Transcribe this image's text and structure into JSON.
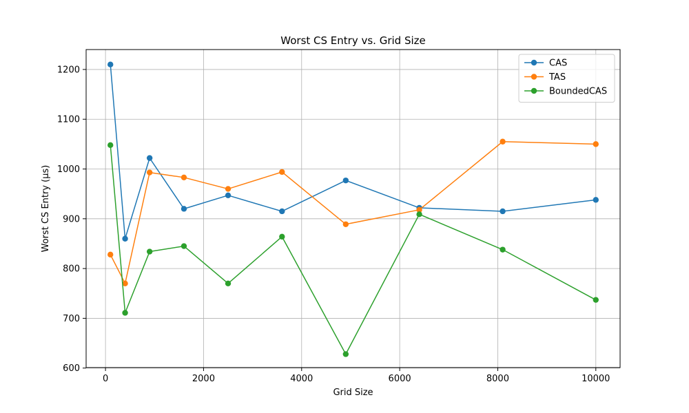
{
  "chart_data": {
    "type": "line",
    "title": "Worst CS Entry vs. Grid Size",
    "xlabel": "Grid Size",
    "ylabel": "Worst CS Entry (µs)",
    "x": [
      100,
      400,
      900,
      1600,
      2500,
      3600,
      4900,
      6400,
      8100,
      10000
    ],
    "series": [
      {
        "name": "CAS",
        "color": "#1f77b4",
        "marker": "circle",
        "values": [
          1210,
          860,
          1022,
          920,
          947,
          915,
          977,
          922,
          915,
          938
        ]
      },
      {
        "name": "TAS",
        "color": "#ff7f0e",
        "marker": "circle",
        "values": [
          828,
          770,
          993,
          983,
          960,
          994,
          889,
          918,
          1055,
          1050
        ]
      },
      {
        "name": "BoundedCAS",
        "color": "#2ca02c",
        "marker": "circle",
        "values": [
          1048,
          711,
          834,
          845,
          770,
          864,
          628,
          909,
          838,
          737
        ]
      }
    ],
    "xlim": [
      -395,
      10495
    ],
    "ylim": [
      601,
      1240
    ],
    "xticks": [
      0,
      2000,
      4000,
      6000,
      8000,
      10000
    ],
    "xtick_labels": [
      "0",
      "2000",
      "4000",
      "6000",
      "8000",
      "10000"
    ],
    "yticks": [
      600,
      700,
      800,
      900,
      1000,
      1100,
      1200
    ],
    "ytick_labels": [
      "600",
      "700",
      "800",
      "900",
      "1000",
      "1100",
      "1200"
    ],
    "grid": true,
    "legend_position": "top-right"
  }
}
